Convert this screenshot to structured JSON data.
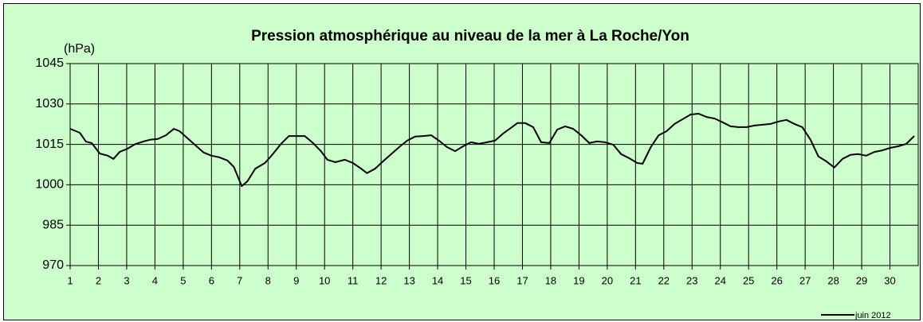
{
  "chart_data": {
    "type": "line",
    "title": "Pression atmosphérique au niveau de la mer à La Roche/Yon",
    "y_label": "(hPa)",
    "x": [
      1.0,
      1.34,
      1.56,
      1.76,
      2.05,
      2.33,
      2.53,
      2.75,
      3.03,
      3.32,
      3.6,
      3.82,
      4.1,
      4.39,
      4.67,
      4.87,
      5.15,
      5.44,
      5.72,
      6.0,
      6.28,
      6.57,
      6.79,
      7.07,
      7.27,
      7.55,
      7.89,
      8.17,
      8.46,
      8.74,
      9.02,
      9.3,
      9.59,
      9.87,
      10.1,
      10.38,
      10.72,
      11.0,
      11.29,
      11.5,
      11.79,
      12.07,
      12.36,
      12.64,
      12.92,
      13.2,
      13.49,
      13.77,
      14.05,
      14.33,
      14.62,
      14.9,
      15.18,
      15.46,
      15.75,
      16.03,
      16.31,
      16.59,
      16.82,
      17.1,
      17.38,
      17.66,
      17.95,
      18.23,
      18.51,
      18.79,
      19.08,
      19.36,
      19.64,
      19.92,
      20.21,
      20.49,
      20.77,
      21.06,
      21.25,
      21.54,
      21.82,
      22.1,
      22.38,
      22.67,
      22.95,
      23.23,
      23.51,
      23.8,
      24.08,
      24.36,
      24.64,
      24.93,
      25.21,
      25.49,
      25.77,
      26.06,
      26.34,
      26.62,
      26.9,
      27.19,
      27.47,
      27.75,
      28.03,
      28.32,
      28.6,
      28.88,
      29.16,
      29.45,
      29.73,
      30.01,
      30.29,
      30.58,
      30.86
    ],
    "series": [
      {
        "name": "juin 2012",
        "color": "#000000",
        "values": [
          1020.8,
          1019.3,
          1016,
          1015.5,
          1011.6,
          1010.8,
          1009.6,
          1012.2,
          1013.4,
          1015.2,
          1016.1,
          1016.7,
          1017,
          1018.4,
          1020.8,
          1019.9,
          1017.3,
          1014.6,
          1012,
          1010.8,
          1010.2,
          1009,
          1006.6,
          999.5,
          1001.3,
          1006,
          1008.1,
          1011.4,
          1015.2,
          1018.1,
          1018.1,
          1018.1,
          1015.5,
          1012.5,
          1009.3,
          1008.4,
          1009.3,
          1008.1,
          1006,
          1004.3,
          1006,
          1008.7,
          1011.4,
          1014,
          1016.4,
          1017.9,
          1018.1,
          1018.4,
          1016.4,
          1014,
          1012.5,
          1014.3,
          1015.8,
          1015.2,
          1015.8,
          1016.4,
          1019,
          1021.1,
          1022.9,
          1022.9,
          1021.4,
          1015.8,
          1015.5,
          1020.5,
          1021.7,
          1020.8,
          1018.4,
          1015.5,
          1016.1,
          1015.8,
          1014.9,
          1011.4,
          1009.9,
          1008.1,
          1007.8,
          1014,
          1018.4,
          1019.9,
          1022.6,
          1024.4,
          1026.1,
          1026.4,
          1025.2,
          1024.6,
          1023.2,
          1021.7,
          1021.4,
          1021.4,
          1022,
          1022.3,
          1022.6,
          1023.5,
          1024.1,
          1022.6,
          1021.4,
          1016.7,
          1010.5,
          1008.7,
          1006.4,
          1009.6,
          1011.1,
          1011.4,
          1010.8,
          1012.2,
          1012.8,
          1013.7,
          1014.3,
          1015.2,
          1018.1
        ]
      }
    ],
    "xlim": [
      1,
      31
    ],
    "xticks": [
      1,
      2,
      3,
      4,
      5,
      6,
      7,
      8,
      9,
      10,
      11,
      12,
      13,
      14,
      15,
      16,
      17,
      18,
      19,
      20,
      21,
      22,
      23,
      24,
      25,
      26,
      27,
      28,
      29,
      30
    ],
    "ylim": [
      970,
      1045
    ],
    "yticks": [
      970,
      985,
      1000,
      1015,
      1030,
      1045
    ],
    "grid": true,
    "legend": "bottom right",
    "background": "#ccffcc"
  }
}
